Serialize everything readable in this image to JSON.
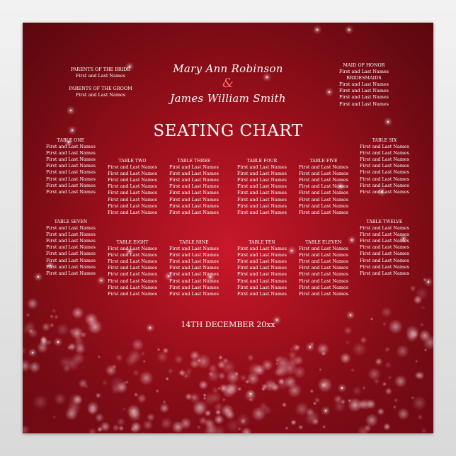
{
  "couple": {
    "bride": "Mary Ann Robinson",
    "groom": "James William Smith",
    "ampersand": "&"
  },
  "title": "SEATING CHART",
  "date": "14TH DECEMBER 20xx",
  "parents": [
    {
      "label": "PARENTS OF THE BRIDE",
      "name": "First and Last Names"
    },
    {
      "label": "PARENTS OF THE GROOM",
      "name": "First and Last Names"
    }
  ],
  "bridal_party": {
    "maid_label": "MAID OF HONOR",
    "maid_name": "First and Last Names",
    "bridesmaids_label": "BRIDESMAIDS",
    "bridesmaids": [
      "First and Last Names",
      "First and Last Names",
      "First and Last Names",
      "First and Last Names"
    ]
  },
  "tables": [
    {
      "name": "TABLE ONE",
      "guests": [
        "First and Last Names",
        "First and Last Names",
        "First and Last Names",
        "First and Last Names",
        "First and Last Names",
        "First and Last Names",
        "First and Last Names",
        "First and Last Names"
      ]
    },
    {
      "name": "TABLE TWO",
      "guests": [
        "First and Last Names",
        "First and Last Names",
        "First and Last Names",
        "First and Last Names",
        "First and Last Names",
        "First and Last Names",
        "First and Last Names",
        "First and Last Names"
      ]
    },
    {
      "name": "TABLE THREE",
      "guests": [
        "First and Last Names",
        "First and Last Names",
        "First and Last Names",
        "First and Last Names",
        "First and Last Names",
        "First and Last Names",
        "First and Last Names",
        "First and Last Names"
      ]
    },
    {
      "name": "TABLE FOUR",
      "guests": [
        "First and Last Names",
        "First and Last Names",
        "First and Last Names",
        "First and Last Names",
        "First and Last Names",
        "First and Last Names",
        "First and Last Names",
        "First and Last Names"
      ]
    },
    {
      "name": "TABLE FIVE",
      "guests": [
        "First and Last Names",
        "First and Last Names",
        "First and Last Names",
        "First and Last Names",
        "First and Last Names",
        "First and Last Names",
        "First and Last Names",
        "First and Last Names"
      ]
    },
    {
      "name": "TABLE SIX",
      "guests": [
        "First and Last Names",
        "First and Last Names",
        "First and Last Names",
        "First and Last Names",
        "First and Last Names",
        "First and Last Names",
        "First and Last Names",
        "First and Last Names"
      ]
    },
    {
      "name": "TABLE SEVEN",
      "guests": [
        "First and Last Names",
        "First and Last Names",
        "First and Last Names",
        "First and Last Names",
        "First and Last Names",
        "First and Last Names",
        "First and Last Names",
        "First and Last Names"
      ]
    },
    {
      "name": "TABLE EIGHT",
      "guests": [
        "First and Last Names",
        "First and Last Names",
        "First and Last Names",
        "First and Last Names",
        "First and Last Names",
        "First and Last Names",
        "First and Last Names",
        "First and Last Names"
      ]
    },
    {
      "name": "TABLE NINE",
      "guests": [
        "First and Last Names",
        "First and Last Names",
        "First and Last Names",
        "First and Last Names",
        "First and Last Names",
        "First and Last Names",
        "First and Last Names",
        "First and Last Names"
      ]
    },
    {
      "name": "TABLE TEN",
      "guests": [
        "First and Last Names",
        "First and Last Names",
        "First and Last Names",
        "First and Last Names",
        "First and Last Names",
        "First and Last Names",
        "First and Last Names",
        "First and Last Names"
      ]
    },
    {
      "name": "TABLE ELEVEN",
      "guests": [
        "First and Last Names",
        "First and Last Names",
        "First and Last Names",
        "First and Last Names",
        "First and Last Names",
        "First and Last Names",
        "First and Last Names",
        "First and Last Names"
      ]
    },
    {
      "name": "TABLE TWELVE",
      "guests": [
        "First and Last Names",
        "First and Last Names",
        "First and Last Names",
        "First and Last Names",
        "First and Last Names",
        "First and Last Names",
        "First and Last Names",
        "First and Last Names"
      ]
    }
  ],
  "colors": {
    "background": "#9e0f1c",
    "accent": "#ff6b6b",
    "text": "#ffffff"
  }
}
